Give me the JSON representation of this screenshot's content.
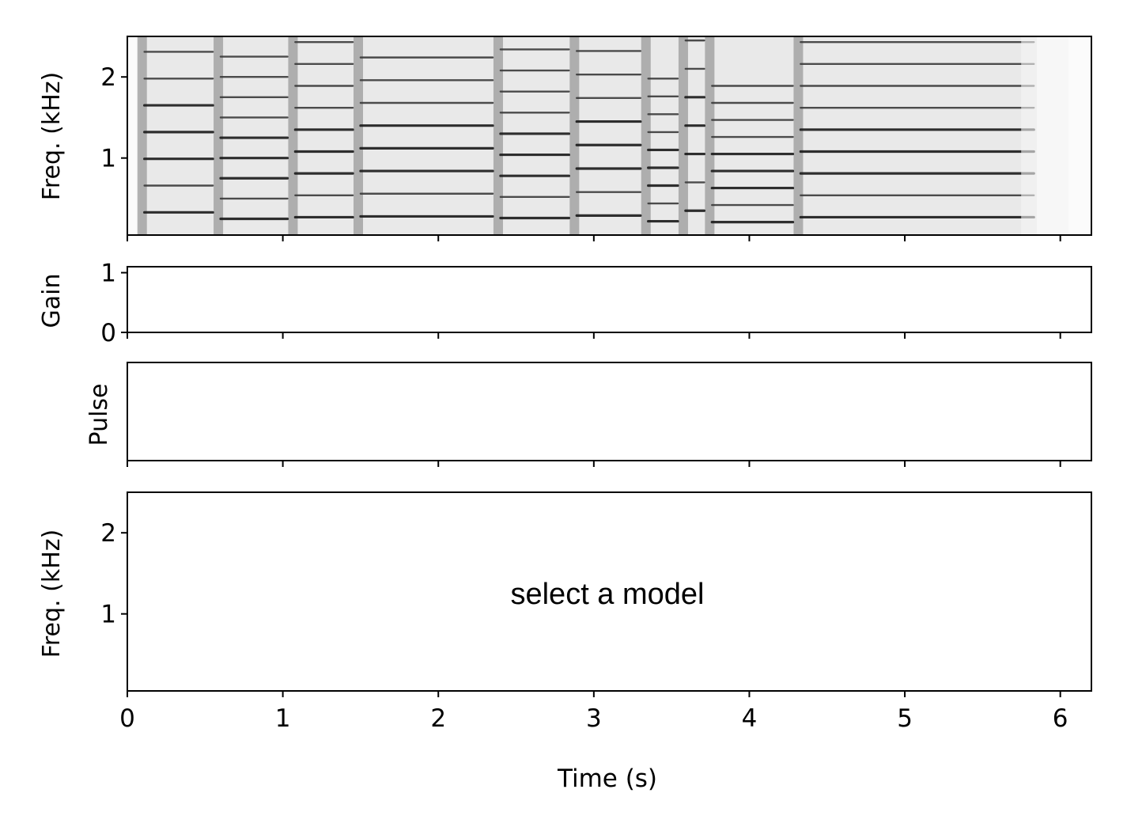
{
  "chart_data": [
    {
      "type": "heatmap",
      "name": "input-spectrogram",
      "ylabel": "Freq. (kHz)",
      "xlim": [
        0,
        6.2
      ],
      "ylim": [
        0.05,
        2.5
      ],
      "yticks": [
        1,
        2
      ],
      "ytick_labels": [
        "1",
        "2"
      ],
      "xticks": [
        0,
        1,
        2,
        3,
        4,
        5,
        6
      ],
      "xtick_labels_visible": false,
      "colormap": "grayscale-inverted",
      "onsets_s": [
        0.08,
        0.57,
        1.05,
        1.47,
        2.37,
        2.86,
        3.32,
        3.56,
        3.73,
        4.3
      ],
      "f0_khz": 0.27,
      "harmonics": [
        1,
        2,
        3,
        4,
        5,
        6,
        7,
        8,
        9
      ],
      "tone_end_s": 5.85
    },
    {
      "type": "line",
      "name": "gain",
      "ylabel": "Gain",
      "xlim": [
        0,
        6.2
      ],
      "ylim": [
        0,
        1.1
      ],
      "yticks": [
        0,
        1
      ],
      "ytick_labels": [
        "0",
        "1"
      ],
      "xticks": [
        0,
        1,
        2,
        3,
        4,
        5,
        6
      ],
      "xtick_labels_visible": false,
      "series": []
    },
    {
      "type": "line",
      "name": "pulse",
      "ylabel": "Pulse",
      "xlim": [
        0,
        6.2
      ],
      "yticks": [],
      "xticks": [
        0,
        1,
        2,
        3,
        4,
        5,
        6
      ],
      "xtick_labels_visible": false,
      "series": []
    },
    {
      "type": "heatmap",
      "name": "model-output",
      "ylabel": "Freq. (kHz)",
      "xlabel": "Time (s)",
      "xlim": [
        0,
        6.2
      ],
      "ylim": [
        0.05,
        2.5
      ],
      "yticks": [
        1,
        2
      ],
      "ytick_labels": [
        "1",
        "2"
      ],
      "xticks": [
        0,
        1,
        2,
        3,
        4,
        5,
        6
      ],
      "xtick_labels": [
        "0",
        "1",
        "2",
        "3",
        "4",
        "5",
        "6"
      ],
      "annotation": "select a model"
    }
  ],
  "colors": {
    "axes": "#000000",
    "background": "#ffffff"
  }
}
